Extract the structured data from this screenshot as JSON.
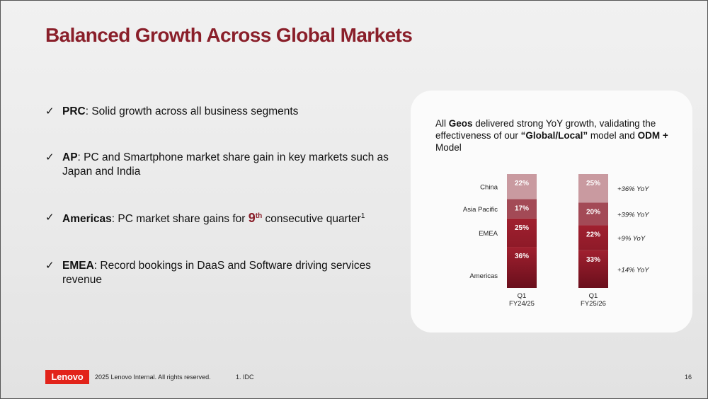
{
  "slide": {
    "title": "Balanced Growth Across Global Markets",
    "page_number": "16"
  },
  "bullets": [
    {
      "bold": "PRC",
      "rest": ": Solid growth across all business segments"
    },
    {
      "bold": "AP",
      "rest": ": PC and Smartphone market share gain in key markets such as Japan and India"
    },
    {
      "bold": "Americas",
      "mid": ": PC market share gains for ",
      "number": "9",
      "superscript": "th",
      "rest": " consecutive quarter",
      "footnote_ref": "1"
    },
    {
      "bold": "EMEA",
      "rest": ": Record bookings in DaaS and Software driving services revenue"
    }
  ],
  "panel": {
    "text_1": "All ",
    "text_bold_1": "Geos",
    "text_2": " delivered strong YoY growth, validating the effectiveness of our ",
    "text_bold_2": "“Global/Local”",
    "text_3": " model and ",
    "text_bold_3": "ODM +",
    "text_4": " Model"
  },
  "footer": {
    "logo_text": "Lenovo",
    "copyright": "2025 Lenovo Internal. All rights reserved.",
    "footnote": "1. IDC"
  },
  "chart_data": {
    "type": "bar",
    "stacked": true,
    "normalized_percent": true,
    "categories": [
      "Q1\nFY24/25",
      "Q1\nFY25/26"
    ],
    "series": [
      {
        "name": "Americas",
        "values": [
          36,
          33
        ],
        "color": "#6a0f1c",
        "color_top": "#a0202f",
        "yoy": "+14% YoY"
      },
      {
        "name": "EMEA",
        "values": [
          25,
          22
        ],
        "color": "#8e1a28",
        "color_top": "#a0202f",
        "yoy": "+9%   YoY"
      },
      {
        "name": "Asia Pacific",
        "values": [
          17,
          20
        ],
        "color": "#a34a56",
        "yoy": "+39%  YoY"
      },
      {
        "name": "China",
        "values": [
          22,
          25
        ],
        "color": "#c99aa0",
        "yoy": "+36% YoY"
      }
    ],
    "value_suffix": "%",
    "ylim": [
      0,
      100
    ],
    "grid": false,
    "legend": "left labels"
  }
}
